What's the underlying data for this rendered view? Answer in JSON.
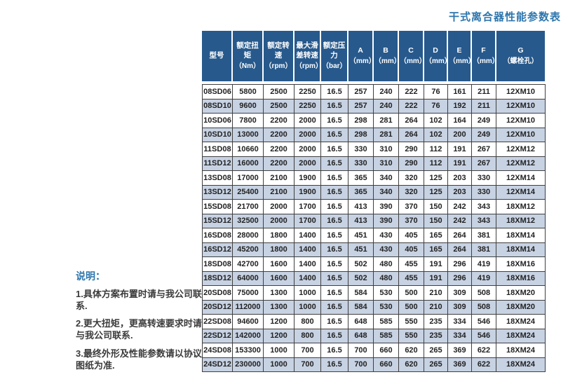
{
  "page_title": "干式离合器性能参数表",
  "notes": {
    "heading": "说明：",
    "items": [
      "1.具体方案布置时请与我公司联系.",
      "2.更大扭矩，更高转速要求时请与我公司联系.",
      "3.最终外形及性能参数请以协议图纸为准."
    ]
  },
  "table": {
    "columns": [
      {
        "label": "型号",
        "unit": ""
      },
      {
        "label": "额定扭矩",
        "unit": "（Nm）"
      },
      {
        "label": "额定转速",
        "unit": "（rpm）"
      },
      {
        "label": "最大滑差转速",
        "unit": "（rpm）"
      },
      {
        "label": "额定压力",
        "unit": "（bar）"
      },
      {
        "label": "A",
        "unit": "（mm）"
      },
      {
        "label": "B",
        "unit": "（mm）"
      },
      {
        "label": "C",
        "unit": "（mm）"
      },
      {
        "label": "D",
        "unit": "（mm）"
      },
      {
        "label": "E",
        "unit": "（mm）"
      },
      {
        "label": "F",
        "unit": "（mm）"
      },
      {
        "label": "G",
        "unit": "（螺栓孔）"
      }
    ],
    "rows": [
      [
        "08SD06",
        "5800",
        "2500",
        "2250",
        "16.5",
        "257",
        "240",
        "222",
        "76",
        "161",
        "211",
        "12XM10"
      ],
      [
        "08SD10",
        "9600",
        "2500",
        "2250",
        "16.5",
        "257",
        "240",
        "222",
        "76",
        "192",
        "211",
        "12XM10"
      ],
      [
        "10SD06",
        "7800",
        "2200",
        "2000",
        "16.5",
        "298",
        "281",
        "264",
        "102",
        "164",
        "249",
        "12XM10"
      ],
      [
        "10SD10",
        "13000",
        "2200",
        "2000",
        "16.5",
        "298",
        "281",
        "264",
        "102",
        "200",
        "249",
        "12XM10"
      ],
      [
        "11SD08",
        "10660",
        "2200",
        "2000",
        "16.5",
        "330",
        "310",
        "290",
        "112",
        "191",
        "267",
        "12XM12"
      ],
      [
        "11SD12",
        "16000",
        "2200",
        "2000",
        "16.5",
        "330",
        "310",
        "290",
        "112",
        "191",
        "267",
        "12XM12"
      ],
      [
        "13SD08",
        "17000",
        "2100",
        "1900",
        "16.5",
        "365",
        "340",
        "320",
        "125",
        "203",
        "330",
        "12XM14"
      ],
      [
        "13SD12",
        "25400",
        "2100",
        "1900",
        "16.5",
        "365",
        "340",
        "320",
        "125",
        "203",
        "330",
        "12XM14"
      ],
      [
        "15SD08",
        "21700",
        "2000",
        "1700",
        "16.5",
        "413",
        "390",
        "370",
        "150",
        "242",
        "343",
        "18XM12"
      ],
      [
        "15SD12",
        "32500",
        "2000",
        "1700",
        "16.5",
        "413",
        "390",
        "370",
        "150",
        "242",
        "343",
        "18XM12"
      ],
      [
        "16SD08",
        "28000",
        "1800",
        "1400",
        "16.5",
        "451",
        "430",
        "405",
        "165",
        "264",
        "381",
        "18XM14"
      ],
      [
        "16SD12",
        "45200",
        "1800",
        "1400",
        "16.5",
        "451",
        "430",
        "405",
        "165",
        "264",
        "381",
        "18XM14"
      ],
      [
        "18SD08",
        "42700",
        "1600",
        "1400",
        "16.5",
        "502",
        "480",
        "455",
        "191",
        "296",
        "419",
        "18XM16"
      ],
      [
        "18SD12",
        "64000",
        "1600",
        "1400",
        "16.5",
        "502",
        "480",
        "455",
        "191",
        "296",
        "419",
        "18XM16"
      ],
      [
        "20SD08",
        "75000",
        "1300",
        "1000",
        "16.5",
        "584",
        "530",
        "500",
        "210",
        "309",
        "508",
        "18XM20"
      ],
      [
        "20SD12",
        "112000",
        "1300",
        "1000",
        "16.5",
        "584",
        "530",
        "500",
        "210",
        "309",
        "508",
        "18XM20"
      ],
      [
        "22SD08",
        "94600",
        "1200",
        "800",
        "16.5",
        "648",
        "585",
        "550",
        "235",
        "334",
        "546",
        "18XM24"
      ],
      [
        "22SD12",
        "142000",
        "1200",
        "800",
        "16.5",
        "648",
        "585",
        "550",
        "235",
        "334",
        "546",
        "18XM24"
      ],
      [
        "24SD08",
        "153300",
        "1000",
        "700",
        "16.5",
        "700",
        "660",
        "620",
        "265",
        "369",
        "622",
        "18XM24"
      ],
      [
        "24SD12",
        "230000",
        "1000",
        "700",
        "16.5",
        "700",
        "660",
        "620",
        "265",
        "369",
        "622",
        "18XM24"
      ]
    ]
  },
  "colors": {
    "accent": "#2d76ad",
    "header_bg": "#27598c",
    "header_text": "#ffffff",
    "row_bg": "#ffffff",
    "row_alt_bg": "#c7d2e3",
    "grid_border": "#3f3f3f",
    "body_text": "#222222",
    "notes_text": "#3b3b3b"
  }
}
